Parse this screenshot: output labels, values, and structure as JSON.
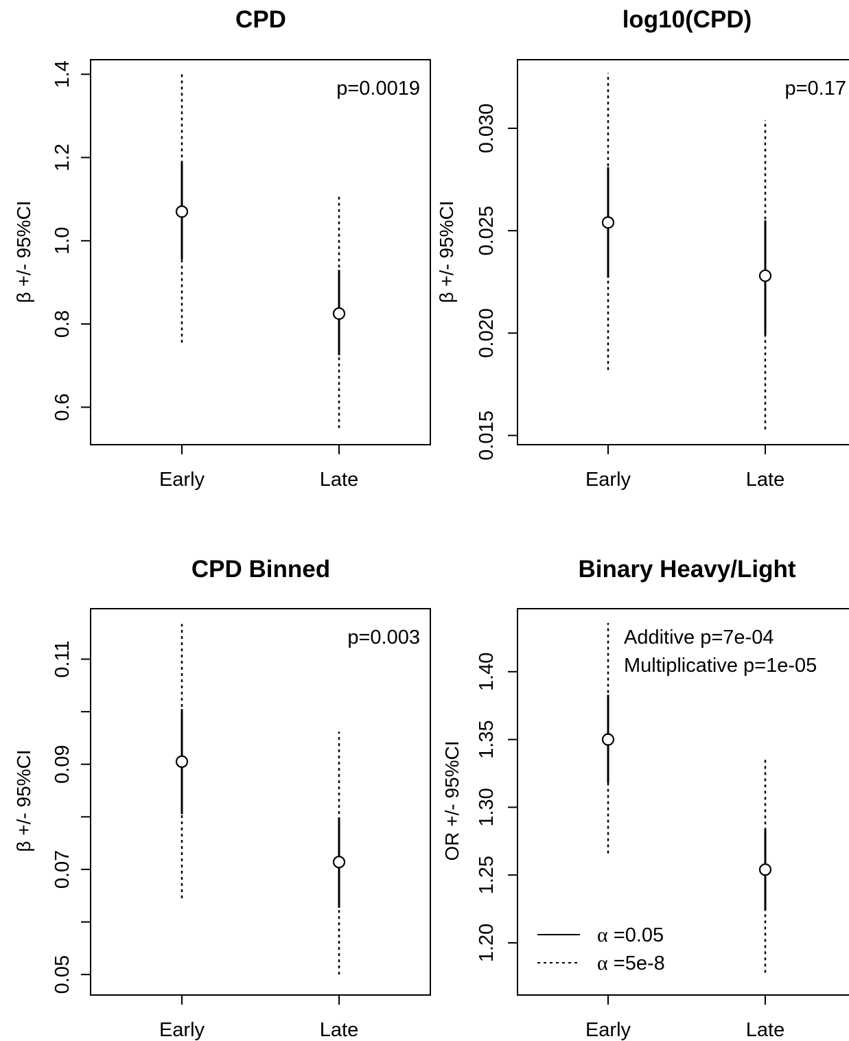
{
  "chart_data": [
    {
      "type": "scatter",
      "title": "CPD",
      "ylabel": "β +/- 95%CI",
      "categories": [
        "Early",
        "Late"
      ],
      "ylim": [
        0.51,
        1.435
      ],
      "yticks": [
        "0.6",
        "0.8",
        "1.0",
        "1.2",
        "1.4"
      ],
      "points": [
        {
          "x": "Early",
          "estimate": 1.07,
          "ci95": [
            0.955,
            1.19
          ],
          "ci_gw": [
            0.755,
            1.4
          ]
        },
        {
          "x": "Late",
          "estimate": 0.825,
          "ci95": [
            0.725,
            0.93
          ],
          "ci_gw": [
            0.55,
            1.11
          ]
        }
      ],
      "annotations": [
        "p=0.0019"
      ]
    },
    {
      "type": "scatter",
      "title": "log10(CPD)",
      "ylabel": "β +/- 95%CI",
      "categories": [
        "Early",
        "Late"
      ],
      "ylim": [
        0.01455,
        0.03335
      ],
      "yticks": [
        "0.015",
        "0.020",
        "0.025",
        "0.030"
      ],
      "points": [
        {
          "x": "Early",
          "estimate": 0.0254,
          "ci95": [
            0.0227,
            0.0281
          ],
          "ci_gw": [
            0.0182,
            0.0327
          ]
        },
        {
          "x": "Late",
          "estimate": 0.0228,
          "ci95": [
            0.0199,
            0.0255
          ],
          "ci_gw": [
            0.0153,
            0.0304
          ]
        }
      ],
      "annotations": [
        "p=0.17"
      ]
    },
    {
      "type": "scatter",
      "title": "CPD Binned",
      "ylabel": "β +/- 95%CI",
      "categories": [
        "Early",
        "Late"
      ],
      "ylim": [
        0.0461,
        0.1196
      ],
      "yticks": [
        "0.05",
        "0.07",
        "0.09",
        "0.11"
      ],
      "ytick_values": [
        0.05,
        0.06,
        0.07,
        0.08,
        0.09,
        0.1,
        0.11
      ],
      "points": [
        {
          "x": "Early",
          "estimate": 0.0905,
          "ci95": [
            0.0805,
            0.1005
          ],
          "ci_gw": [
            0.0645,
            0.1167
          ]
        },
        {
          "x": "Late",
          "estimate": 0.0714,
          "ci95": [
            0.0627,
            0.0799
          ],
          "ci_gw": [
            0.05,
            0.0962
          ]
        }
      ],
      "annotations": [
        "p=0.003"
      ]
    },
    {
      "type": "scatter",
      "title": "Binary Heavy/Light",
      "ylabel": "OR +/- 95%CI",
      "categories": [
        "Early",
        "Late"
      ],
      "ylim": [
        1.1615,
        1.4465
      ],
      "yticks": [
        "1.20",
        "1.25",
        "1.30",
        "1.35",
        "1.40"
      ],
      "points": [
        {
          "x": "Early",
          "estimate": 1.35,
          "ci95": [
            1.318,
            1.383
          ],
          "ci_gw": [
            1.266,
            1.436
          ]
        },
        {
          "x": "Late",
          "estimate": 1.254,
          "ci95": [
            1.224,
            1.284
          ],
          "ci_gw": [
            1.178,
            1.335
          ]
        }
      ],
      "annotations": [
        "Additive p=7e-04",
        "Multiplicative p=1e-05"
      ],
      "legend": [
        {
          "symbol": "α",
          "label": " =0.05",
          "style": "solid"
        },
        {
          "symbol": "α",
          "label": " =5e-8",
          "style": "dotted"
        }
      ]
    }
  ]
}
